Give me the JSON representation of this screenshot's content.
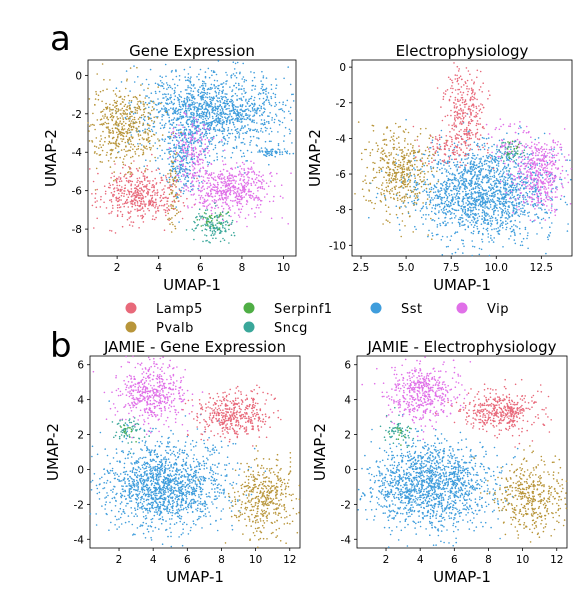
{
  "panel_labels": [
    "a",
    "b"
  ],
  "legend": {
    "entries": [
      {
        "name": "Lamp5",
        "color": "#e8697a"
      },
      {
        "name": "Pvalb",
        "color": "#b8953a"
      },
      {
        "name": "Serpinf1",
        "color": "#4fae45"
      },
      {
        "name": "Sncg",
        "color": "#3aa79a"
      },
      {
        "name": "Sst",
        "color": "#3f9ddc"
      },
      {
        "name": "Vip",
        "color": "#e070e8"
      }
    ]
  },
  "chart_data": [
    {
      "type": "scatter",
      "title": "Gene Expression",
      "xlabel": "UMAP-1",
      "ylabel": "UMAP-2",
      "xlim": [
        0.6,
        10.6
      ],
      "ylim": [
        -9.4,
        0.8
      ],
      "xticks": [
        "2",
        "4",
        "6",
        "8",
        "10"
      ],
      "yticks": [
        "0",
        "-2",
        "-4",
        "-6",
        "-8"
      ],
      "clusters": [
        {
          "label": "Sst",
          "cx": 6.6,
          "cy": -1.9,
          "sx": 1.7,
          "sy": 1.05,
          "n": 1400
        },
        {
          "label": "Sst",
          "cx": 5.1,
          "cy": -4.4,
          "sx": 0.45,
          "sy": 0.9,
          "n": 250
        },
        {
          "label": "Sst",
          "cx": 9.4,
          "cy": -4.0,
          "sx": 0.5,
          "sy": 0.12,
          "n": 60
        },
        {
          "label": "Pvalb",
          "cx": 2.3,
          "cy": -2.7,
          "sx": 0.85,
          "sy": 1.05,
          "n": 500
        },
        {
          "label": "Pvalb",
          "cx": 4.7,
          "cy": -6.0,
          "sx": 0.15,
          "sy": 1.0,
          "n": 70
        },
        {
          "label": "Lamp5",
          "cx": 3.1,
          "cy": -6.3,
          "sx": 0.9,
          "sy": 0.7,
          "n": 450
        },
        {
          "label": "Vip",
          "cx": 7.4,
          "cy": -5.9,
          "sx": 1.05,
          "sy": 0.65,
          "n": 520
        },
        {
          "label": "Vip",
          "cx": 5.6,
          "cy": -3.9,
          "sx": 0.5,
          "sy": 0.9,
          "n": 180
        },
        {
          "label": "Sncg",
          "cx": 6.6,
          "cy": -7.8,
          "sx": 0.5,
          "sy": 0.4,
          "n": 140
        },
        {
          "label": "Serpinf1",
          "cx": 6.6,
          "cy": -7.4,
          "sx": 0.35,
          "sy": 0.3,
          "n": 30
        }
      ]
    },
    {
      "type": "scatter",
      "title": "Electrophysiology",
      "xlabel": "UMAP-1",
      "ylabel": "UMAP-2",
      "xlim": [
        2.0,
        14.2
      ],
      "ylim": [
        -10.6,
        0.4
      ],
      "xticks": [
        "2.5",
        "5.0",
        "7.5",
        "10.0",
        "12.5"
      ],
      "yticks": [
        "0",
        "-2",
        "-4",
        "-6",
        "-8",
        "-10"
      ],
      "clusters": [
        {
          "label": "Sst",
          "cx": 9.3,
          "cy": -7.0,
          "sx": 1.9,
          "sy": 1.35,
          "n": 1700
        },
        {
          "label": "Pvalb",
          "cx": 4.6,
          "cy": -5.9,
          "sx": 0.95,
          "sy": 1.25,
          "n": 450
        },
        {
          "label": "Lamp5",
          "cx": 8.3,
          "cy": -2.3,
          "sx": 0.55,
          "sy": 1.2,
          "n": 260
        },
        {
          "label": "Lamp5",
          "cx": 7.6,
          "cy": -4.5,
          "sx": 0.9,
          "sy": 0.55,
          "n": 120
        },
        {
          "label": "Vip",
          "cx": 12.4,
          "cy": -5.9,
          "sx": 0.8,
          "sy": 1.0,
          "n": 420
        },
        {
          "label": "Vip",
          "cx": 10.8,
          "cy": -4.2,
          "sx": 0.6,
          "sy": 0.5,
          "n": 60
        },
        {
          "label": "Sncg",
          "cx": 10.8,
          "cy": -4.8,
          "sx": 0.35,
          "sy": 0.35,
          "n": 40
        },
        {
          "label": "Serpinf1",
          "cx": 10.9,
          "cy": -4.6,
          "sx": 0.25,
          "sy": 0.25,
          "n": 15
        }
      ]
    },
    {
      "type": "scatter",
      "title": "JAMIE - Gene Expression",
      "xlabel": "UMAP-1",
      "ylabel": "UMAP-2",
      "xlim": [
        0.3,
        12.6
      ],
      "ylim": [
        -4.5,
        6.5
      ],
      "xticks": [
        "2",
        "4",
        "6",
        "8",
        "10",
        "12"
      ],
      "yticks": [
        "6",
        "4",
        "2",
        "0",
        "-2",
        "-4"
      ],
      "clusters": [
        {
          "label": "Sst",
          "cx": 4.6,
          "cy": -0.9,
          "sx": 1.75,
          "sy": 1.25,
          "n": 1500
        },
        {
          "label": "Vip",
          "cx": 4.0,
          "cy": 4.3,
          "sx": 1.0,
          "sy": 0.85,
          "n": 480
        },
        {
          "label": "Lamp5",
          "cx": 8.7,
          "cy": 3.2,
          "sx": 1.1,
          "sy": 0.65,
          "n": 420
        },
        {
          "label": "Pvalb",
          "cx": 10.5,
          "cy": -1.6,
          "sx": 0.95,
          "sy": 1.05,
          "n": 430
        },
        {
          "label": "Sncg",
          "cx": 2.6,
          "cy": 2.2,
          "sx": 0.5,
          "sy": 0.4,
          "n": 60
        },
        {
          "label": "Serpinf1",
          "cx": 2.7,
          "cy": 2.0,
          "sx": 0.3,
          "sy": 0.3,
          "n": 12
        }
      ]
    },
    {
      "type": "scatter",
      "title": "JAMIE - Electrophysiology",
      "xlabel": "UMAP-1",
      "ylabel": "UMAP-2",
      "xlim": [
        0.3,
        12.6
      ],
      "ylim": [
        -4.5,
        6.5
      ],
      "xticks": [
        "2",
        "4",
        "6",
        "8",
        "10",
        "12"
      ],
      "yticks": [
        "6",
        "4",
        "2",
        "0",
        "-2",
        "-4"
      ],
      "clusters": [
        {
          "label": "Sst",
          "cx": 4.6,
          "cy": -0.9,
          "sx": 1.75,
          "sy": 1.25,
          "n": 1500
        },
        {
          "label": "Vip",
          "cx": 4.0,
          "cy": 4.3,
          "sx": 1.0,
          "sy": 0.85,
          "n": 480
        },
        {
          "label": "Lamp5",
          "cx": 8.7,
          "cy": 3.3,
          "sx": 1.1,
          "sy": 0.6,
          "n": 420
        },
        {
          "label": "Pvalb",
          "cx": 10.5,
          "cy": -1.6,
          "sx": 0.95,
          "sy": 1.05,
          "n": 430
        },
        {
          "label": "Sncg",
          "cx": 2.6,
          "cy": 2.2,
          "sx": 0.5,
          "sy": 0.4,
          "n": 60
        },
        {
          "label": "Serpinf1",
          "cx": 2.7,
          "cy": 2.0,
          "sx": 0.3,
          "sy": 0.3,
          "n": 12
        }
      ]
    }
  ]
}
